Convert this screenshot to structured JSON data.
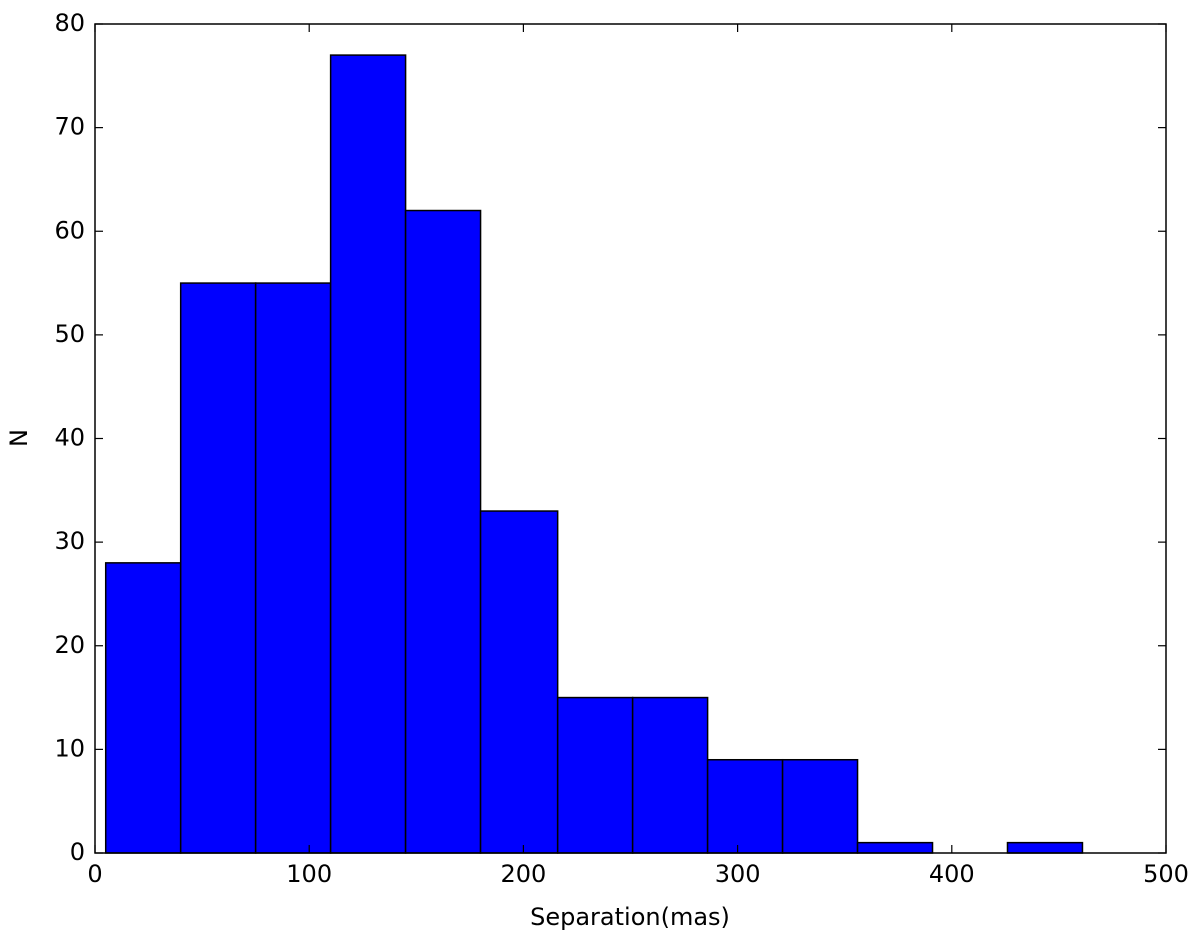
{
  "chart_data": {
    "type": "histogram",
    "xlabel": "Separation(mas)",
    "ylabel": "N",
    "bins": [
      5,
      40,
      75,
      110,
      145,
      180,
      216,
      251,
      286,
      321,
      356,
      391,
      426,
      461
    ],
    "values": [
      28,
      55,
      55,
      77,
      62,
      33,
      15,
      15,
      9,
      9,
      1,
      0,
      1
    ],
    "color": "#0000ff",
    "edgecolor": "#000000",
    "xlim": [
      0,
      500
    ],
    "xticks": [
      0,
      100,
      200,
      300,
      400,
      500
    ],
    "ylim": [
      0,
      80
    ],
    "yticks": [
      0,
      10,
      20,
      30,
      40,
      50,
      60,
      70,
      80
    ]
  }
}
